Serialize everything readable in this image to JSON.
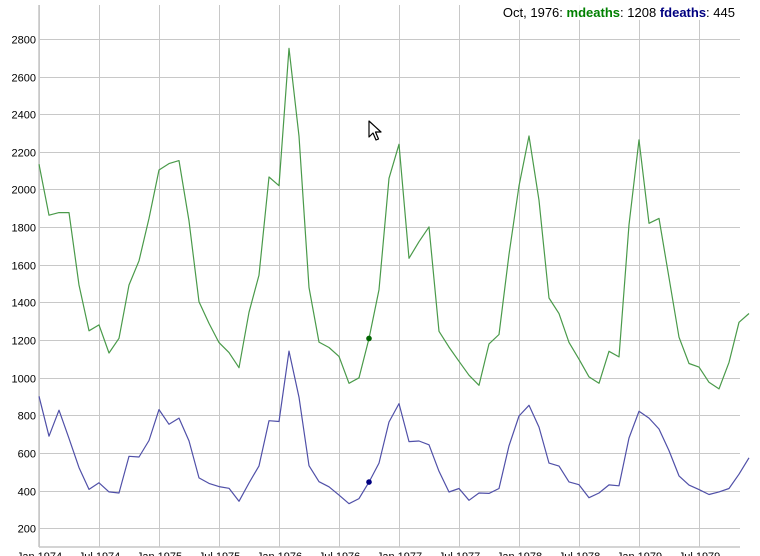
{
  "legend": {
    "date": "Oct, 1976",
    "sep": ":",
    "m_name": "mdeaths",
    "m_value": "1208",
    "f_name": "fdeaths",
    "f_value": "445"
  },
  "chart_data": {
    "type": "line",
    "x_start": "Jan 1974",
    "x_step": "month",
    "ylim": [
      100,
      2980
    ],
    "yticks": [
      200,
      400,
      600,
      800,
      1000,
      1200,
      1400,
      1600,
      1800,
      2000,
      2200,
      2400,
      2600,
      2800
    ],
    "xticks": [
      "Jan 1974",
      "Jul 1974",
      "Jan 1975",
      "Jul 1975",
      "Jan 1976",
      "Jul 1976",
      "Jan 1977",
      "Jul 1977",
      "Jan 1978",
      "Jul 1978",
      "Jan 1979",
      "Jul 1979"
    ],
    "grid": true,
    "highlight_x": "Oct 1976",
    "series": [
      {
        "name": "mdeaths",
        "color": "#4a9a4a",
        "values": [
          2134,
          1863,
          1877,
          1877,
          1492,
          1249,
          1280,
          1131,
          1209,
          1492,
          1621,
          1846,
          2103,
          2137,
          2153,
          1833,
          1403,
          1288,
          1186,
          1133,
          1053,
          1347,
          1545,
          2066,
          2020,
          2750,
          2283,
          1479,
          1189,
          1160,
          1113,
          970,
          999,
          1208,
          1467,
          2059,
          2240,
          1634,
          1722,
          1801,
          1246,
          1162,
          1087,
          1013,
          959,
          1179,
          1229,
          1655,
          2019,
          2284,
          1942,
          1423,
          1340,
          1187,
          1098,
          1004,
          970,
          1140,
          1110,
          1812,
          2263,
          1820,
          1846,
          1531,
          1215,
          1075,
          1056,
          975,
          940,
          1081,
          1294,
          1341
        ]
      },
      {
        "name": "fdeaths",
        "color": "#5050a8",
        "values": [
          901,
          689,
          827,
          677,
          522,
          406,
          441,
          393,
          387,
          582,
          578,
          666,
          830,
          752,
          785,
          664,
          467,
          438,
          421,
          412,
          343,
          440,
          531,
          771,
          767,
          1141,
          896,
          532,
          447,
          420,
          376,
          330,
          357,
          445,
          546,
          764,
          862,
          660,
          663,
          643,
          502,
          392,
          411,
          348,
          387,
          385,
          411,
          638,
          796,
          853,
          737,
          546,
          530,
          446,
          431,
          362,
          387,
          430,
          425,
          679,
          821,
          785,
          727,
          612,
          478,
          429,
          405,
          379,
          393,
          411,
          487,
          574
        ]
      }
    ]
  }
}
